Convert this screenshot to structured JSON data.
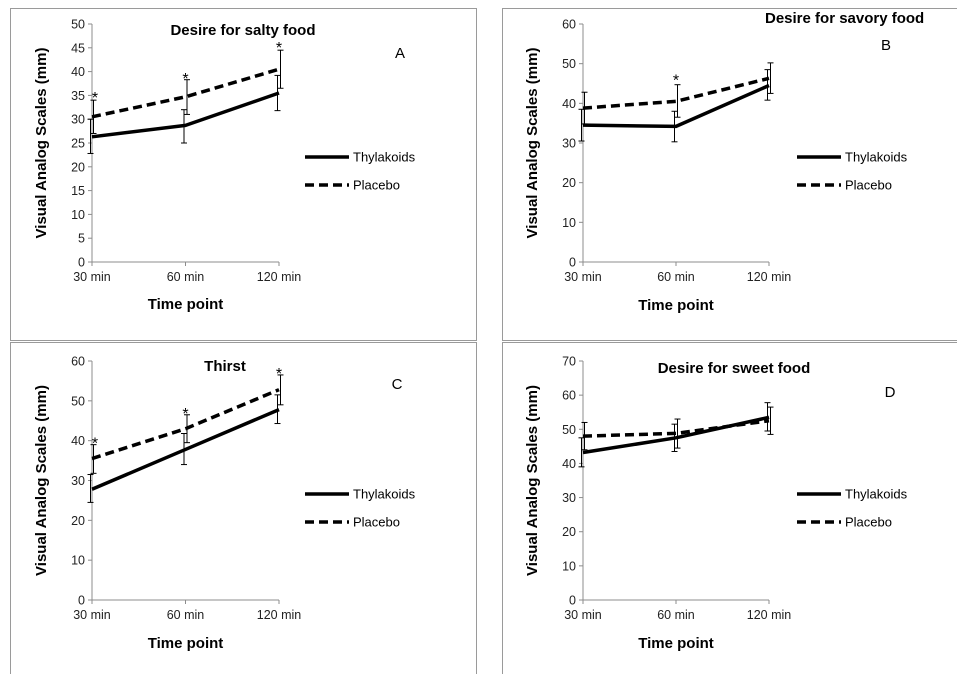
{
  "chart_data": [
    {
      "panel": "A",
      "type": "line",
      "title": "Desire for salty food",
      "xlabel": "Time point",
      "ylabel": "Visual Analog Scales (mm)",
      "categories": [
        "30 min",
        "60 min",
        "120 min"
      ],
      "ylim": [
        0,
        50
      ],
      "yticks": [
        0,
        5,
        10,
        15,
        20,
        25,
        30,
        35,
        40,
        45,
        50
      ],
      "series": [
        {
          "name": "Thylakoids",
          "style": "solid",
          "values": [
            26.3,
            28.7,
            35.5
          ],
          "err_low": [
            22.8,
            25.0,
            31.8
          ],
          "err_high": [
            30.0,
            32.0,
            39.2
          ]
        },
        {
          "name": "Placebo",
          "style": "dashed",
          "values": [
            30.5,
            34.7,
            40.5
          ],
          "err_low": [
            27.0,
            31.0,
            36.5
          ],
          "err_high": [
            34.0,
            38.3,
            44.5
          ]
        }
      ],
      "annotations": [
        {
          "text": "*",
          "category": "30 min",
          "y": 35.5
        },
        {
          "text": "*",
          "category": "60 min",
          "y": 39.5
        },
        {
          "text": "*",
          "category": "120 min",
          "y": 46.0
        }
      ],
      "grid": false,
      "legend": "right"
    },
    {
      "panel": "B",
      "type": "line",
      "title": "Desire for savory food",
      "xlabel": "Time point",
      "ylabel": "Visual Analog Scales (mm)",
      "categories": [
        "30 min",
        "60 min",
        "120 min"
      ],
      "ylim": [
        0,
        60
      ],
      "yticks": [
        0,
        10,
        20,
        30,
        40,
        50,
        60
      ],
      "series": [
        {
          "name": "Thylakoids",
          "style": "solid",
          "values": [
            34.5,
            34.2,
            44.5
          ],
          "err_low": [
            30.5,
            30.3,
            40.8
          ],
          "err_high": [
            38.5,
            38.0,
            48.5
          ]
        },
        {
          "name": "Placebo",
          "style": "dashed",
          "values": [
            38.8,
            40.5,
            46.3
          ],
          "err_low": [
            34.8,
            36.5,
            42.5
          ],
          "err_high": [
            42.8,
            44.7,
            50.2
          ]
        }
      ],
      "annotations": [
        {
          "text": "*",
          "category": "60 min",
          "y": 47.0
        }
      ],
      "grid": false,
      "legend": "right"
    },
    {
      "panel": "C",
      "type": "line",
      "title": "Thirst",
      "xlabel": "Time point",
      "ylabel": "Visual Analog Scales (mm)",
      "categories": [
        "30 min",
        "60 min",
        "120 min"
      ],
      "ylim": [
        0,
        60
      ],
      "yticks": [
        0,
        10,
        20,
        30,
        40,
        50,
        60
      ],
      "series": [
        {
          "name": "Thylakoids",
          "style": "solid",
          "values": [
            27.8,
            37.8,
            47.8
          ],
          "err_low": [
            24.5,
            34.0,
            44.3
          ],
          "err_high": [
            31.5,
            41.8,
            51.5
          ]
        },
        {
          "name": "Placebo",
          "style": "dashed",
          "values": [
            35.5,
            43.0,
            52.8
          ],
          "err_low": [
            31.8,
            39.5,
            49.0
          ],
          "err_high": [
            39.0,
            46.5,
            56.5
          ]
        }
      ],
      "annotations": [
        {
          "text": "*",
          "category": "30 min",
          "y": 40.5
        },
        {
          "text": "*",
          "category": "60 min",
          "y": 48.0
        },
        {
          "text": "*",
          "category": "120 min",
          "y": 58.0
        }
      ],
      "grid": false,
      "legend": "right"
    },
    {
      "panel": "D",
      "type": "line",
      "title": "Desire for sweet food",
      "xlabel": "Time point",
      "ylabel": "Visual Analog Scales (mm)",
      "categories": [
        "30 min",
        "60 min",
        "120 min"
      ],
      "ylim": [
        0,
        70
      ],
      "yticks": [
        0,
        10,
        20,
        30,
        40,
        50,
        60,
        70
      ],
      "series": [
        {
          "name": "Thylakoids",
          "style": "solid",
          "values": [
            43.2,
            47.5,
            53.5
          ],
          "err_low": [
            39.0,
            43.5,
            49.5
          ],
          "err_high": [
            47.5,
            51.5,
            57.8
          ]
        },
        {
          "name": "Placebo",
          "style": "dashed",
          "values": [
            48.0,
            48.8,
            52.5
          ],
          "err_low": [
            44.0,
            44.5,
            48.5
          ],
          "err_high": [
            52.0,
            53.0,
            56.5
          ]
        }
      ],
      "annotations": [],
      "grid": false,
      "legend": "right"
    }
  ]
}
